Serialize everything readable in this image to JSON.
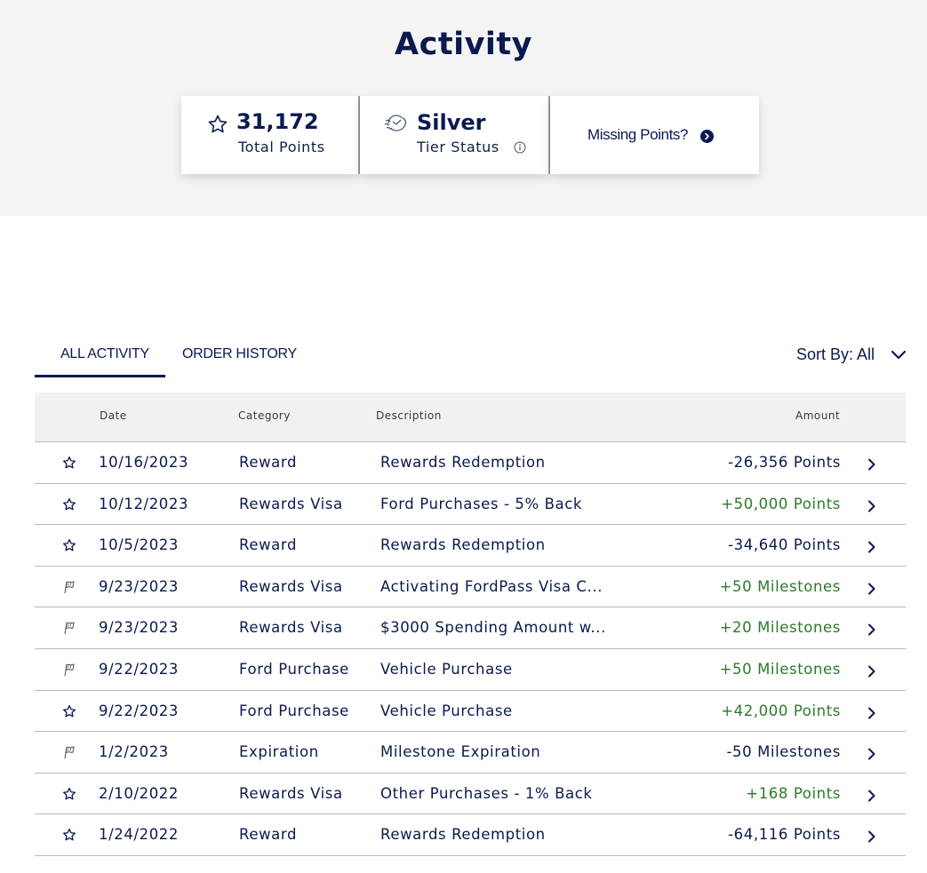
{
  "header": {
    "title": "Activity"
  },
  "summary": {
    "points_value": "31,172",
    "points_label": "Total Points",
    "points_icon": "star-icon",
    "tier_value": "Silver",
    "tier_label": "Tier Status",
    "tier_icon": "tier-badge-icon",
    "info_icon": "info-icon",
    "missing_label": "Missing Points?",
    "missing_icon": "arrow-circle-right-icon"
  },
  "tabs": [
    {
      "label": "ALL ACTIVITY",
      "active": true
    },
    {
      "label": "ORDER HISTORY",
      "active": false
    }
  ],
  "sort": {
    "label": "Sort By: All",
    "icon": "chevron-down-icon"
  },
  "table": {
    "columns": {
      "date": "Date",
      "category": "Category",
      "description": "Description",
      "amount": "Amount"
    },
    "rows": [
      {
        "icon": "star-icon",
        "date": "10/16/2023",
        "category": "Reward",
        "description": "Rewards Redemption",
        "amount": "-26,356 Points",
        "positive": false
      },
      {
        "icon": "star-icon",
        "date": "10/12/2023",
        "category": "Rewards Visa",
        "description": "Ford Purchases - 5% Back",
        "amount": "+50,000 Points",
        "positive": true
      },
      {
        "icon": "star-icon",
        "date": "10/5/2023",
        "category": "Reward",
        "description": "Rewards Redemption",
        "amount": "-34,640 Points",
        "positive": false
      },
      {
        "icon": "flag-icon",
        "date": "9/23/2023",
        "category": "Rewards Visa",
        "description": "Activating FordPass Visa C...",
        "amount": "+50 Milestones",
        "positive": true
      },
      {
        "icon": "flag-icon",
        "date": "9/23/2023",
        "category": "Rewards Visa",
        "description": "$3000 Spending Amount w...",
        "amount": "+20 Milestones",
        "positive": true
      },
      {
        "icon": "flag-icon",
        "date": "9/22/2023",
        "category": "Ford Purchase",
        "description": "Vehicle Purchase",
        "amount": "+50 Milestones",
        "positive": true
      },
      {
        "icon": "star-icon",
        "date": "9/22/2023",
        "category": "Ford Purchase",
        "description": "Vehicle Purchase",
        "amount": "+42,000 Points",
        "positive": true
      },
      {
        "icon": "flag-icon",
        "date": "1/2/2023",
        "category": "Expiration",
        "description": "Milestone Expiration",
        "amount": "-50 Milestones",
        "positive": false
      },
      {
        "icon": "star-icon",
        "date": "2/10/2022",
        "category": "Rewards Visa",
        "description": "Other Purchases - 1% Back",
        "amount": "+168 Points",
        "positive": true
      },
      {
        "icon": "star-icon",
        "date": "1/24/2022",
        "category": "Reward",
        "description": "Rewards Redemption",
        "amount": "-64,116 Points",
        "positive": false
      }
    ]
  },
  "colors": {
    "navy": "#0a1a4e",
    "positive": "#2b7a2b",
    "hero_bg": "#f4f4f4",
    "header_bg": "#f1f1f1"
  }
}
